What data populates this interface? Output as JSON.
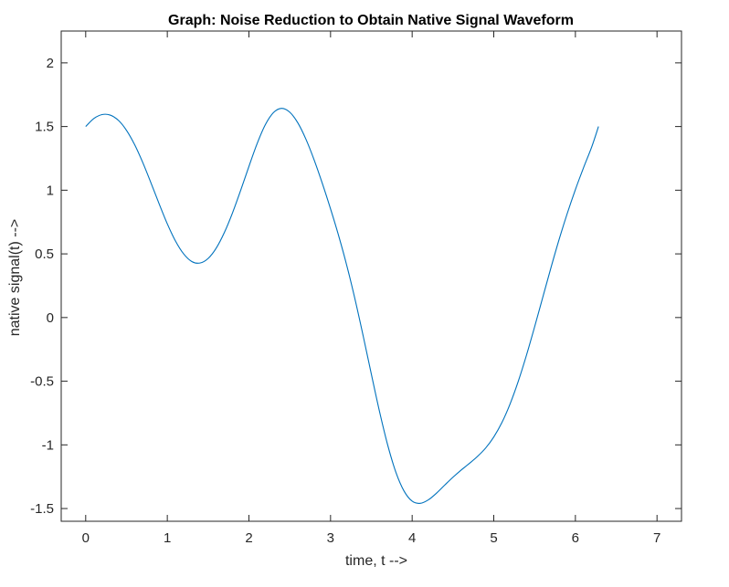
{
  "chart_data": {
    "type": "line",
    "title": "Graph: Noise Reduction to Obtain Native Signal Waveform",
    "xlabel": "time, t -->",
    "ylabel": "native signal(t) -->",
    "xlim": [
      -0.3,
      7.3
    ],
    "ylim": [
      -1.6,
      2.25
    ],
    "xticks": [
      0,
      1,
      2,
      3,
      4,
      5,
      6,
      7
    ],
    "xtick_labels": [
      "0",
      "1",
      "2",
      "3",
      "4",
      "5",
      "6",
      "7"
    ],
    "yticks": [
      -1.5,
      -1,
      -0.5,
      0,
      0.5,
      1,
      1.5,
      2
    ],
    "ytick_labels": [
      "-1.5",
      "-1",
      "-0.5",
      "0",
      "0.5",
      "1",
      "1.5",
      "2"
    ],
    "grid": false,
    "box": true,
    "line_color": "#0072BD",
    "axis_color": "#262626",
    "series": [
      {
        "x": [
          0.0,
          0.1,
          0.2,
          0.3,
          0.4,
          0.5,
          0.6,
          0.7,
          0.8,
          0.9,
          1.0,
          1.1,
          1.2,
          1.3,
          1.4,
          1.5,
          1.6,
          1.7,
          1.8,
          1.9,
          2.0,
          2.1,
          2.2,
          2.3,
          2.4,
          2.5,
          2.6,
          2.7,
          2.8,
          2.9,
          3.0,
          3.1,
          3.2,
          3.3,
          3.4,
          3.5,
          3.6,
          3.7,
          3.8,
          3.9,
          4.0,
          4.1,
          4.2,
          4.3,
          4.4,
          4.5,
          4.6,
          4.7,
          4.8,
          4.9,
          5.0,
          5.1,
          5.2,
          5.3,
          5.4,
          5.5,
          5.6,
          5.7,
          5.8,
          5.9,
          6.0,
          6.1,
          6.2,
          6.283
        ],
        "values": [
          1.5,
          1.563,
          1.594,
          1.59,
          1.549,
          1.47,
          1.357,
          1.216,
          1.057,
          0.893,
          0.736,
          0.601,
          0.5,
          0.44,
          0.428,
          0.464,
          0.546,
          0.669,
          0.824,
          1.001,
          1.187,
          1.365,
          1.513,
          1.609,
          1.643,
          1.613,
          1.528,
          1.398,
          1.236,
          1.052,
          0.853,
          0.641,
          0.406,
          0.143,
          -0.145,
          -0.445,
          -0.738,
          -1.001,
          -1.214,
          -1.362,
          -1.442,
          -1.459,
          -1.431,
          -1.378,
          -1.315,
          -1.254,
          -1.198,
          -1.146,
          -1.091,
          -1.025,
          -0.938,
          -0.824,
          -0.678,
          -0.501,
          -0.297,
          -0.074,
          0.158,
          0.39,
          0.612,
          0.817,
          1.005,
          1.177,
          1.34,
          1.5
        ]
      }
    ]
  }
}
